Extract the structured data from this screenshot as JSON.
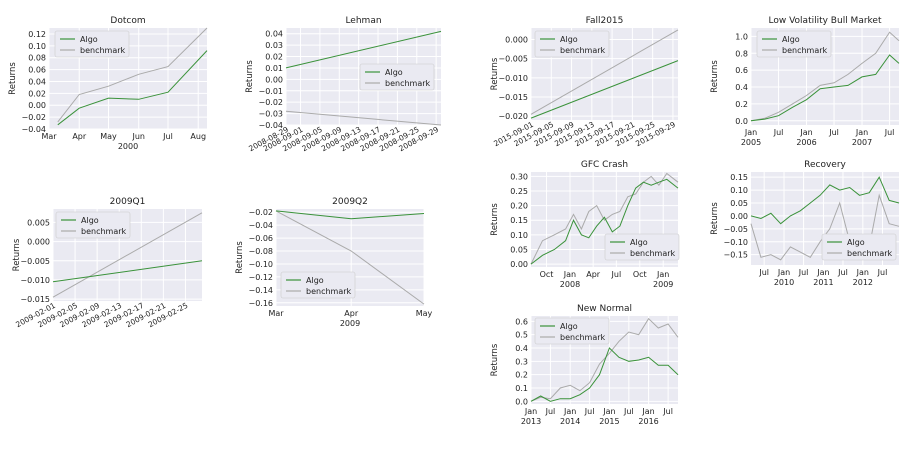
{
  "legend": {
    "algo": "Algo",
    "benchmark": "benchmark"
  },
  "colors": {
    "algo": "#3a923a",
    "benchmark": "#aaaaaa",
    "panel": "#eaeaf2",
    "grid": "#ffffff"
  },
  "chart_data": [
    {
      "type": "line",
      "title": "Dotcom",
      "ylabel": "Returns",
      "xlabel": "2000",
      "legend_position": "upper-left",
      "x": [
        "2000-03-10",
        "2000-04-01",
        "2000-05-01",
        "2000-06-01",
        "2000-07-01",
        "2000-08-10"
      ],
      "xlim": [
        "2000-03-01",
        "2000-08-10"
      ],
      "xticks": [
        {
          "x": "2000-03-01",
          "label": "Mar"
        },
        {
          "x": "2000-04-01",
          "label": "Apr"
        },
        {
          "x": "2000-05-01",
          "label": "May"
        },
        {
          "x": "2000-06-01",
          "label": "Jun"
        },
        {
          "x": "2000-07-01",
          "label": "Jul"
        },
        {
          "x": "2000-08-01",
          "label": "Aug"
        }
      ],
      "ylim": [
        -0.04,
        0.13
      ],
      "yticks": [
        {
          "v": -0.04,
          "label": "−0.04"
        },
        {
          "v": -0.02,
          "label": "−0.02"
        },
        {
          "v": 0,
          "label": "0.00"
        },
        {
          "v": 0.02,
          "label": "0.02"
        },
        {
          "v": 0.04,
          "label": "0.04"
        },
        {
          "v": 0.06,
          "label": "0.06"
        },
        {
          "v": 0.08,
          "label": "0.08"
        },
        {
          "v": 0.1,
          "label": "0.10"
        },
        {
          "v": 0.12,
          "label": "0.12"
        }
      ],
      "series": [
        {
          "name": "Algo",
          "values": [
            -0.033,
            -0.005,
            0.012,
            0.01,
            0.022,
            0.092
          ]
        },
        {
          "name": "benchmark",
          "values": [
            -0.028,
            0.018,
            0.032,
            0.052,
            0.065,
            0.13
          ]
        }
      ]
    },
    {
      "type": "line",
      "title": "Lehman",
      "ylabel": "Returns",
      "xlabel": "",
      "legend_position": "center-right",
      "x": [
        "2008-08-29",
        "2008-09-30"
      ],
      "xlim": [
        "2008-08-29",
        "2008-09-30"
      ],
      "xticks": [
        {
          "x": "2008-08-29",
          "label": "2008-08-29"
        },
        {
          "x": "2008-09-01",
          "label": "2008-09-01"
        },
        {
          "x": "2008-09-05",
          "label": "2008-09-05"
        },
        {
          "x": "2008-09-09",
          "label": "2008-09-09"
        },
        {
          "x": "2008-09-13",
          "label": "2008-09-13"
        },
        {
          "x": "2008-09-17",
          "label": "2008-09-17"
        },
        {
          "x": "2008-09-21",
          "label": "2008-09-21"
        },
        {
          "x": "2008-09-25",
          "label": "2008-09-25"
        },
        {
          "x": "2008-09-29",
          "label": "2008-09-29"
        }
      ],
      "ylim": [
        -0.04,
        0.045
      ],
      "yticks": [
        {
          "v": -0.04,
          "label": "−0.04"
        },
        {
          "v": -0.03,
          "label": "−0.03"
        },
        {
          "v": -0.02,
          "label": "−0.02"
        },
        {
          "v": -0.01,
          "label": "−0.01"
        },
        {
          "v": 0,
          "label": "0.00"
        },
        {
          "v": 0.01,
          "label": "0.01"
        },
        {
          "v": 0.02,
          "label": "0.02"
        },
        {
          "v": 0.03,
          "label": "0.03"
        },
        {
          "v": 0.04,
          "label": "0.04"
        }
      ],
      "series": [
        {
          "name": "Algo",
          "values": [
            0.01,
            0.042
          ]
        },
        {
          "name": "benchmark",
          "values": [
            -0.028,
            -0.04
          ]
        }
      ]
    },
    {
      "type": "line",
      "title": "Fall2015",
      "ylabel": "Returns",
      "xlabel": "",
      "legend_position": "upper-left",
      "x": [
        "2015-09-01",
        "2015-09-30"
      ],
      "xlim": [
        "2015-09-01",
        "2015-09-30"
      ],
      "xticks": [
        {
          "x": "2015-09-01",
          "label": "2015-09-01"
        },
        {
          "x": "2015-09-05",
          "label": "2015-09-05"
        },
        {
          "x": "2015-09-09",
          "label": "2015-09-09"
        },
        {
          "x": "2015-09-13",
          "label": "2015-09-13"
        },
        {
          "x": "2015-09-17",
          "label": "2015-09-17"
        },
        {
          "x": "2015-09-21",
          "label": "2015-09-21"
        },
        {
          "x": "2015-09-25",
          "label": "2015-09-25"
        },
        {
          "x": "2015-09-29",
          "label": "2015-09-29"
        }
      ],
      "ylim": [
        -0.021,
        0.003
      ],
      "yticks": [
        {
          "v": -0.02,
          "label": "−0.020"
        },
        {
          "v": -0.015,
          "label": "−0.015"
        },
        {
          "v": -0.01,
          "label": "−0.010"
        },
        {
          "v": -0.005,
          "label": "−0.005"
        },
        {
          "v": 0,
          "label": "0.000"
        }
      ],
      "series": [
        {
          "name": "Algo",
          "values": [
            -0.0205,
            -0.0055
          ]
        },
        {
          "name": "benchmark",
          "values": [
            -0.0195,
            0.0025
          ]
        }
      ]
    },
    {
      "type": "line",
      "title": "Low Volatility Bull Market",
      "ylabel": "Returns",
      "xlabel": "",
      "legend_position": "upper-left",
      "x": [
        "2005-01-01",
        "2005-04-01",
        "2005-07-01",
        "2005-10-01",
        "2006-01-01",
        "2006-04-01",
        "2006-07-01",
        "2006-10-01",
        "2007-01-01",
        "2007-04-01",
        "2007-07-01",
        "2007-09-01"
      ],
      "xlim": [
        "2005-01-01",
        "2007-09-01"
      ],
      "xticks": [
        {
          "x": "2005-01-01",
          "label": "Jan",
          "sub": "2005"
        },
        {
          "x": "2005-07-01",
          "label": "Jul"
        },
        {
          "x": "2006-01-01",
          "label": "Jan",
          "sub": "2006"
        },
        {
          "x": "2006-07-01",
          "label": "Jul"
        },
        {
          "x": "2007-01-01",
          "label": "Jan",
          "sub": "2007"
        },
        {
          "x": "2007-07-01",
          "label": "Jul"
        }
      ],
      "ylim": [
        -0.05,
        1.1
      ],
      "yticks": [
        {
          "v": 0,
          "label": "0.0"
        },
        {
          "v": 0.2,
          "label": "0.2"
        },
        {
          "v": 0.4,
          "label": "0.4"
        },
        {
          "v": 0.6,
          "label": "0.6"
        },
        {
          "v": 0.8,
          "label": "0.8"
        },
        {
          "v": 1.0,
          "label": "1.0"
        }
      ],
      "series": [
        {
          "name": "Algo",
          "values": [
            0.0,
            0.02,
            0.06,
            0.16,
            0.25,
            0.38,
            0.4,
            0.42,
            0.52,
            0.55,
            0.78,
            0.68
          ]
        },
        {
          "name": "benchmark",
          "values": [
            0.0,
            0.03,
            0.1,
            0.2,
            0.3,
            0.42,
            0.45,
            0.55,
            0.68,
            0.8,
            1.05,
            0.95
          ]
        }
      ]
    },
    {
      "type": "line",
      "title": "2009Q1",
      "ylabel": "Returns",
      "xlabel": "",
      "legend_position": "upper-left",
      "x": [
        "2009-02-01",
        "2009-02-28"
      ],
      "xlim": [
        "2009-02-01",
        "2009-02-28"
      ],
      "xticks": [
        {
          "x": "2009-02-01",
          "label": "2009-02-01"
        },
        {
          "x": "2009-02-05",
          "label": "2009-02-05"
        },
        {
          "x": "2009-02-09",
          "label": "2009-02-09"
        },
        {
          "x": "2009-02-13",
          "label": "2009-02-13"
        },
        {
          "x": "2009-02-17",
          "label": "2009-02-17"
        },
        {
          "x": "2009-02-21",
          "label": "2009-02-21"
        },
        {
          "x": "2009-02-25",
          "label": "2009-02-25"
        }
      ],
      "ylim": [
        -0.0155,
        0.0085
      ],
      "yticks": [
        {
          "v": -0.015,
          "label": "−0.015"
        },
        {
          "v": -0.01,
          "label": "−0.010"
        },
        {
          "v": -0.005,
          "label": "−0.005"
        },
        {
          "v": 0,
          "label": "0.000"
        },
        {
          "v": 0.005,
          "label": "0.005"
        }
      ],
      "series": [
        {
          "name": "Algo",
          "values": [
            -0.0105,
            -0.005
          ]
        },
        {
          "name": "benchmark",
          "values": [
            -0.0145,
            0.0075
          ]
        }
      ]
    },
    {
      "type": "line",
      "title": "2009Q2",
      "ylabel": "Returns",
      "xlabel": "2009",
      "legend_position": "lower-left",
      "x": [
        "2009-03-01",
        "2009-04-01",
        "2009-05-01"
      ],
      "xlim": [
        "2009-03-01",
        "2009-05-01"
      ],
      "xticks": [
        {
          "x": "2009-03-01",
          "label": "Mar"
        },
        {
          "x": "2009-04-01",
          "label": "Apr"
        },
        {
          "x": "2009-05-01",
          "label": "May"
        }
      ],
      "ylim": [
        -0.165,
        -0.015
      ],
      "yticks": [
        {
          "v": -0.02,
          "label": "−0.02"
        },
        {
          "v": -0.04,
          "label": "−0.04"
        },
        {
          "v": -0.06,
          "label": "−0.06"
        },
        {
          "v": -0.08,
          "label": "−0.08"
        },
        {
          "v": -0.1,
          "label": "−0.10"
        },
        {
          "v": -0.12,
          "label": "−0.12"
        },
        {
          "v": -0.14,
          "label": "−0.14"
        },
        {
          "v": -0.16,
          "label": "−0.16"
        }
      ],
      "series": [
        {
          "name": "Algo",
          "values": [
            -0.018,
            -0.03,
            -0.022
          ]
        },
        {
          "name": "benchmark",
          "values": [
            -0.018,
            -0.08,
            -0.162
          ]
        }
      ]
    },
    {
      "type": "line",
      "title": "GFC Crash",
      "ylabel": "Returns",
      "xlabel": "",
      "legend_position": "lower-right",
      "x": [
        "2007-08-01",
        "2007-09-15",
        "2007-11-01",
        "2007-12-15",
        "2008-01-15",
        "2008-02-15",
        "2008-03-15",
        "2008-04-15",
        "2008-05-15",
        "2008-06-15",
        "2008-07-15",
        "2008-08-15",
        "2008-09-15",
        "2008-10-15",
        "2008-11-15",
        "2008-12-15",
        "2009-01-15",
        "2009-02-28"
      ],
      "xlim": [
        "2007-08-01",
        "2009-02-28"
      ],
      "xticks": [
        {
          "x": "2007-10-01",
          "label": "Oct"
        },
        {
          "x": "2008-01-01",
          "label": "Jan",
          "sub": "2008"
        },
        {
          "x": "2008-04-01",
          "label": "Apr"
        },
        {
          "x": "2008-07-01",
          "label": "Jul"
        },
        {
          "x": "2008-10-01",
          "label": "Oct"
        },
        {
          "x": "2009-01-01",
          "label": "Jan",
          "sub": "2009"
        }
      ],
      "ylim": [
        -0.01,
        0.315
      ],
      "yticks": [
        {
          "v": 0,
          "label": "0.00"
        },
        {
          "v": 0.05,
          "label": "0.05"
        },
        {
          "v": 0.1,
          "label": "0.10"
        },
        {
          "v": 0.15,
          "label": "0.15"
        },
        {
          "v": 0.2,
          "label": "0.20"
        },
        {
          "v": 0.25,
          "label": "0.25"
        },
        {
          "v": 0.3,
          "label": "0.30"
        }
      ],
      "series": [
        {
          "name": "Algo",
          "values": [
            0.0,
            0.03,
            0.05,
            0.08,
            0.15,
            0.1,
            0.09,
            0.13,
            0.16,
            0.11,
            0.13,
            0.2,
            0.26,
            0.28,
            0.27,
            0.28,
            0.29,
            0.26
          ]
        },
        {
          "name": "benchmark",
          "values": [
            0.0,
            0.08,
            0.1,
            0.12,
            0.17,
            0.12,
            0.18,
            0.2,
            0.15,
            0.17,
            0.18,
            0.23,
            0.24,
            0.28,
            0.3,
            0.27,
            0.31,
            0.28
          ]
        }
      ]
    },
    {
      "type": "line",
      "title": "Recovery",
      "ylabel": "Returns",
      "xlabel": "",
      "legend_position": "lower-right",
      "x": [
        "2009-03-01",
        "2009-06-01",
        "2009-09-01",
        "2009-12-01",
        "2010-03-01",
        "2010-06-01",
        "2010-09-01",
        "2010-12-01",
        "2011-03-01",
        "2011-06-01",
        "2011-09-01",
        "2011-12-01",
        "2012-03-01",
        "2012-06-01",
        "2012-09-01",
        "2012-12-01"
      ],
      "xlim": [
        "2009-03-01",
        "2012-12-01"
      ],
      "xticks": [
        {
          "x": "2009-07-01",
          "label": "Jul"
        },
        {
          "x": "2010-01-01",
          "label": "Jan",
          "sub": "2010"
        },
        {
          "x": "2010-07-01",
          "label": "Jul"
        },
        {
          "x": "2011-01-01",
          "label": "Jan",
          "sub": "2011"
        },
        {
          "x": "2011-07-01",
          "label": "Jul"
        },
        {
          "x": "2012-01-01",
          "label": "Jan",
          "sub": "2012"
        },
        {
          "x": "2012-07-01",
          "label": "Jul"
        }
      ],
      "ylim": [
        -0.19,
        0.17
      ],
      "yticks": [
        {
          "v": -0.15,
          "label": "−0.15"
        },
        {
          "v": -0.1,
          "label": "−0.10"
        },
        {
          "v": -0.05,
          "label": "−0.05"
        },
        {
          "v": 0,
          "label": "0.00"
        },
        {
          "v": 0.05,
          "label": "0.05"
        },
        {
          "v": 0.1,
          "label": "0.10"
        },
        {
          "v": 0.15,
          "label": "0.15"
        }
      ],
      "series": [
        {
          "name": "Algo",
          "values": [
            0.0,
            -0.01,
            0.01,
            -0.03,
            0.0,
            0.02,
            0.05,
            0.08,
            0.12,
            0.1,
            0.11,
            0.08,
            0.09,
            0.15,
            0.06,
            0.05
          ]
        },
        {
          "name": "benchmark",
          "values": [
            -0.03,
            -0.16,
            -0.15,
            -0.17,
            -0.12,
            -0.14,
            -0.16,
            -0.1,
            -0.05,
            0.05,
            -0.1,
            -0.15,
            -0.12,
            0.08,
            -0.03,
            -0.04
          ]
        }
      ]
    },
    {
      "type": "line",
      "title": "New Normal",
      "ylabel": "Returns",
      "xlabel": "",
      "legend_position": "upper-left",
      "x": [
        "2013-01-01",
        "2013-04-01",
        "2013-07-01",
        "2013-10-01",
        "2014-01-01",
        "2014-04-01",
        "2014-07-01",
        "2014-10-01",
        "2015-01-01",
        "2015-04-01",
        "2015-07-01",
        "2015-10-01",
        "2016-01-01",
        "2016-04-01",
        "2016-07-01",
        "2016-10-01"
      ],
      "xlim": [
        "2013-01-01",
        "2016-10-01"
      ],
      "xticks": [
        {
          "x": "2013-01-01",
          "label": "Jan",
          "sub": "2013"
        },
        {
          "x": "2013-07-01",
          "label": "Jul"
        },
        {
          "x": "2014-01-01",
          "label": "Jan",
          "sub": "2014"
        },
        {
          "x": "2014-07-01",
          "label": "Jul"
        },
        {
          "x": "2015-01-01",
          "label": "Jan",
          "sub": "2015"
        },
        {
          "x": "2015-07-01",
          "label": "Jul"
        },
        {
          "x": "2016-01-01",
          "label": "Jan",
          "sub": "2016"
        },
        {
          "x": "2016-07-01",
          "label": "Jul"
        }
      ],
      "ylim": [
        -0.02,
        0.64
      ],
      "yticks": [
        {
          "v": 0,
          "label": "0.0"
        },
        {
          "v": 0.1,
          "label": "0.1"
        },
        {
          "v": 0.2,
          "label": "0.2"
        },
        {
          "v": 0.3,
          "label": "0.3"
        },
        {
          "v": 0.4,
          "label": "0.4"
        },
        {
          "v": 0.5,
          "label": "0.5"
        },
        {
          "v": 0.6,
          "label": "0.6"
        }
      ],
      "series": [
        {
          "name": "Algo",
          "values": [
            0.0,
            0.04,
            0.0,
            0.02,
            0.02,
            0.05,
            0.1,
            0.2,
            0.4,
            0.33,
            0.3,
            0.31,
            0.33,
            0.27,
            0.27,
            0.2
          ]
        },
        {
          "name": "benchmark",
          "values": [
            0.0,
            0.03,
            0.02,
            0.1,
            0.12,
            0.08,
            0.14,
            0.28,
            0.36,
            0.45,
            0.52,
            0.5,
            0.62,
            0.55,
            0.58,
            0.48
          ]
        }
      ]
    }
  ]
}
